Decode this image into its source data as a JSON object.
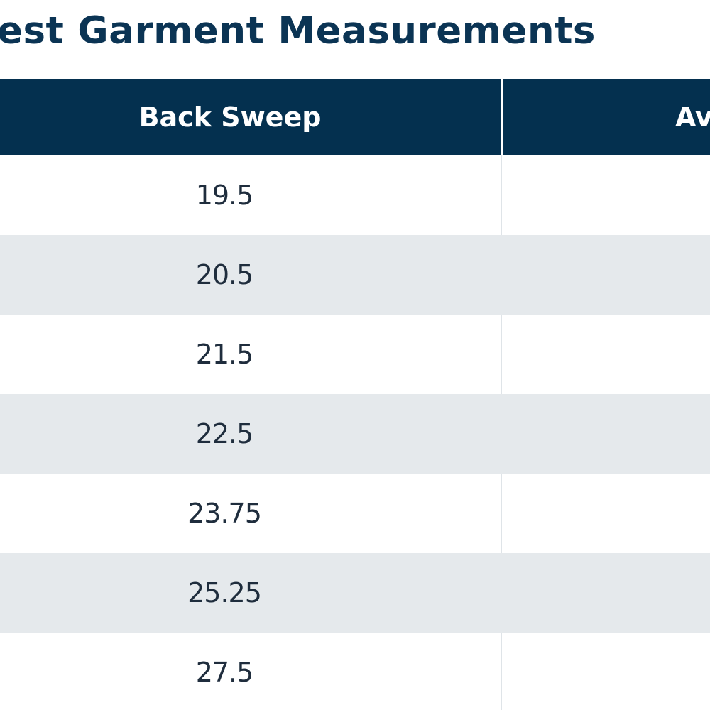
{
  "title": "est Garment Measurements",
  "table": {
    "headers": [
      "Back Sweep",
      "Av"
    ],
    "rows": [
      {
        "back_sweep": "19.5",
        "next": ""
      },
      {
        "back_sweep": "20.5",
        "next": ""
      },
      {
        "back_sweep": "21.5",
        "next": ""
      },
      {
        "back_sweep": "22.5",
        "next": ""
      },
      {
        "back_sweep": "23.75",
        "next": ""
      },
      {
        "back_sweep": "25.25",
        "next": ""
      },
      {
        "back_sweep": "27.5",
        "next": ""
      }
    ]
  },
  "colors": {
    "header_background": "#04304f",
    "title_text": "#0b3454",
    "stripe_row": "#e5e9ec",
    "body_text": "#1f2d3d"
  }
}
